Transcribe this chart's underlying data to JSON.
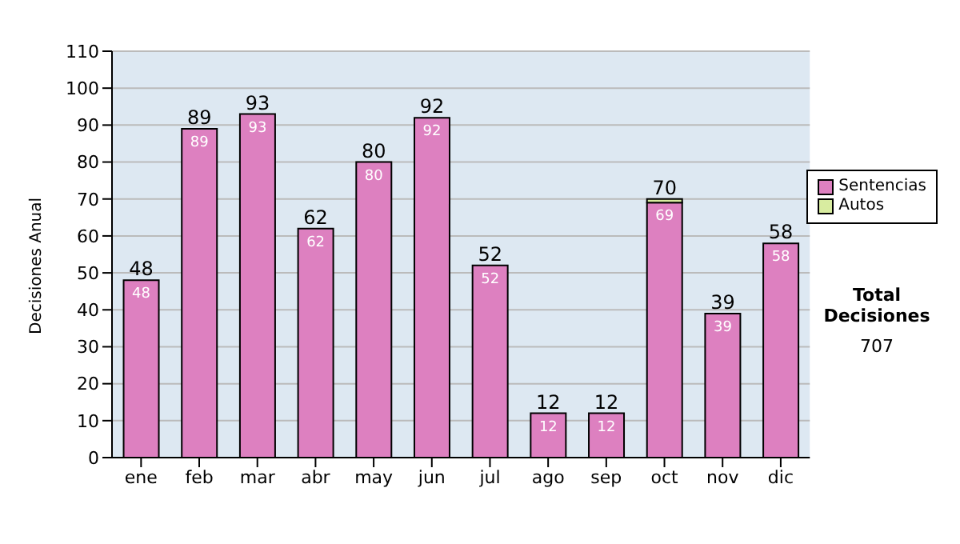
{
  "chart_data": {
    "type": "bar",
    "stacked": true,
    "ylabel": "Decisiones Anual",
    "categories": [
      "ene",
      "feb",
      "mar",
      "abr",
      "may",
      "jun",
      "jul",
      "ago",
      "sep",
      "oct",
      "nov",
      "dic"
    ],
    "series": [
      {
        "name": "Sentencias",
        "color": "#dd80c0",
        "values": [
          48,
          89,
          93,
          62,
          80,
          92,
          52,
          12,
          12,
          69,
          39,
          58
        ],
        "value_labels": [
          "48",
          "89",
          "93",
          "62",
          "80",
          "92",
          "52",
          "12",
          "12",
          "69",
          "39",
          "58"
        ]
      },
      {
        "name": "Autos",
        "color": "#d8eca0",
        "values": [
          0,
          0,
          0,
          0,
          0,
          0,
          0,
          0,
          0,
          1,
          0,
          0
        ]
      }
    ],
    "totals": [
      "48",
      "89",
      "93",
      "62",
      "80",
      "92",
      "52",
      "12",
      "12",
      "70",
      "39",
      "58"
    ],
    "ylim": [
      0,
      110
    ],
    "yticks": [
      0,
      10,
      20,
      30,
      40,
      50,
      60,
      70,
      80,
      90,
      100,
      110
    ],
    "grid": "y",
    "legend": "right",
    "annotations": [
      "Total Decisiones",
      "707"
    ]
  }
}
